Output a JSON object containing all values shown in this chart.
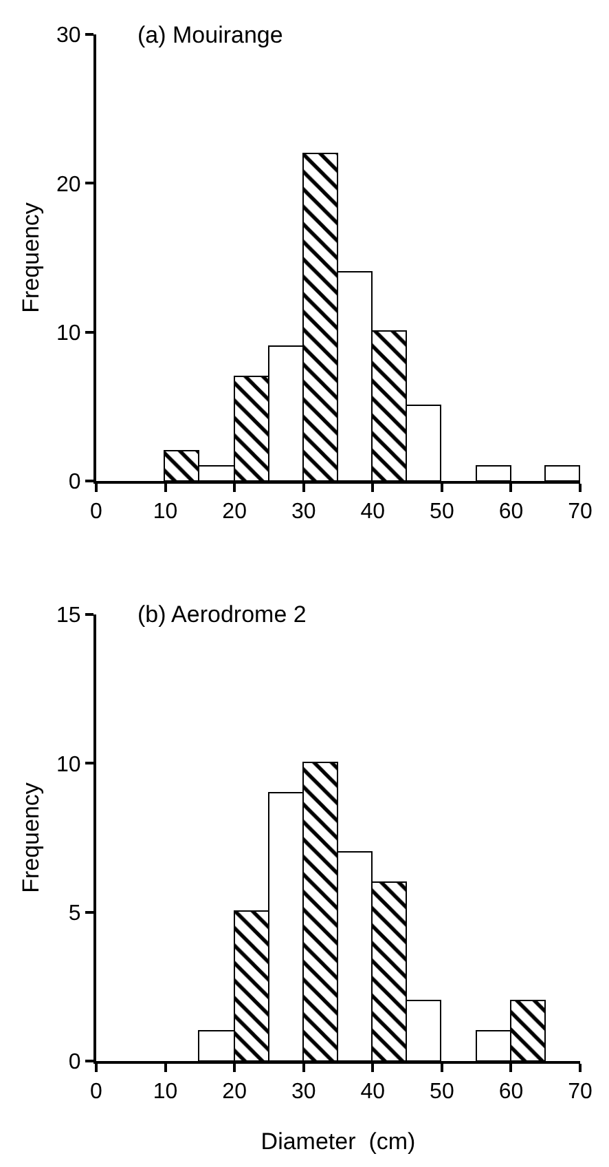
{
  "chart_data": [
    {
      "type": "histogram",
      "title": "(a) Mouirange",
      "ylabel": "Frequency",
      "bins": [
        10,
        15,
        20,
        25,
        30,
        35,
        40,
        45,
        50,
        55,
        60,
        65,
        70
      ],
      "values": [
        2,
        1,
        7,
        9,
        22,
        14,
        10,
        5,
        0,
        1,
        0,
        1
      ],
      "colors": [
        "#000000",
        "#ffffff",
        "#000000",
        "#ffffff",
        "#000000",
        "#ffffff",
        "#000000",
        "#ffffff",
        "#ffffff",
        "#ffffff",
        "#ffffff",
        "#ffffff"
      ],
      "xlim": [
        0,
        70
      ],
      "xticks": [
        0,
        10,
        20,
        30,
        40,
        50,
        60,
        70
      ],
      "ylim": [
        0,
        30
      ],
      "yticks": [
        0,
        10,
        20,
        30
      ]
    },
    {
      "type": "histogram",
      "title": "(b) Aerodrome 2",
      "ylabel": "Frequency",
      "xlabel": "Diameter  (cm)",
      "bins": [
        15,
        20,
        25,
        30,
        35,
        40,
        45,
        50,
        55,
        60,
        65
      ],
      "values": [
        1,
        5,
        9,
        10,
        7,
        6,
        2,
        0,
        1,
        2
      ],
      "colors": [
        "#ffffff",
        "#000000",
        "#ffffff",
        "#000000",
        "#ffffff",
        "#000000",
        "#ffffff",
        "#ffffff",
        "#ffffff",
        "#000000"
      ],
      "xlim": [
        0,
        70
      ],
      "xticks": [
        0,
        10,
        20,
        30,
        40,
        50,
        60,
        70
      ],
      "ylim": [
        0,
        15
      ],
      "yticks": [
        0,
        5,
        10,
        15
      ]
    }
  ]
}
